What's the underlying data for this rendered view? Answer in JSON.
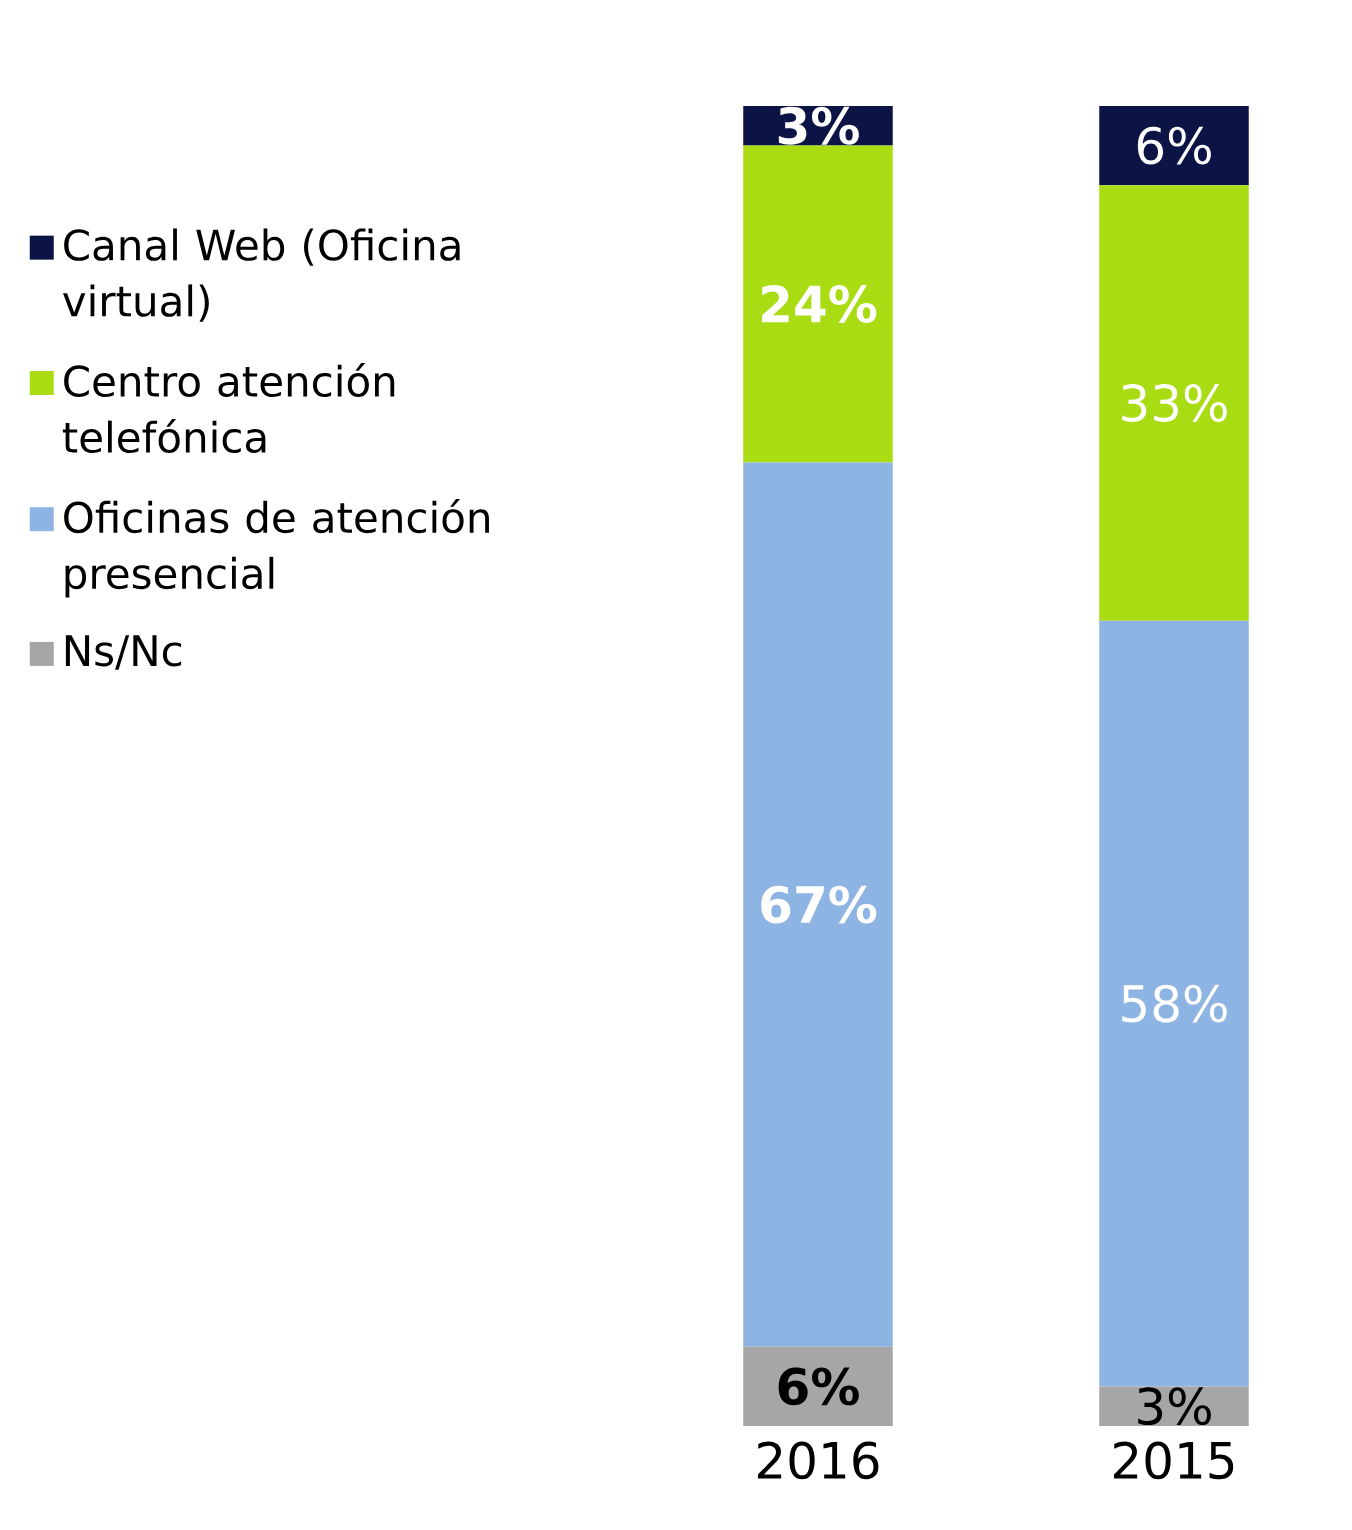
{
  "chart_data": {
    "type": "bar",
    "stacked": true,
    "categories": [
      "2016",
      "2015"
    ],
    "series": [
      {
        "name": "Ns/Nc",
        "color": "#a6a6a6",
        "values": [
          6,
          3
        ],
        "value_labels": [
          "6%",
          "3%"
        ]
      },
      {
        "name": "Oficinas de atención presencial",
        "color": "#8eb4e3",
        "values": [
          67,
          58
        ],
        "value_labels": [
          "67%",
          "58%"
        ]
      },
      {
        "name": "Centro atención telefónica",
        "color": "#aadc14",
        "values": [
          24,
          33
        ],
        "value_labels": [
          "24%",
          "33%"
        ]
      },
      {
        "name": "Canal Web (Oficina virtual)",
        "color": "#0c1445",
        "values": [
          3,
          6
        ],
        "value_labels": [
          "3%",
          "6%"
        ]
      }
    ],
    "legend": "left"
  }
}
